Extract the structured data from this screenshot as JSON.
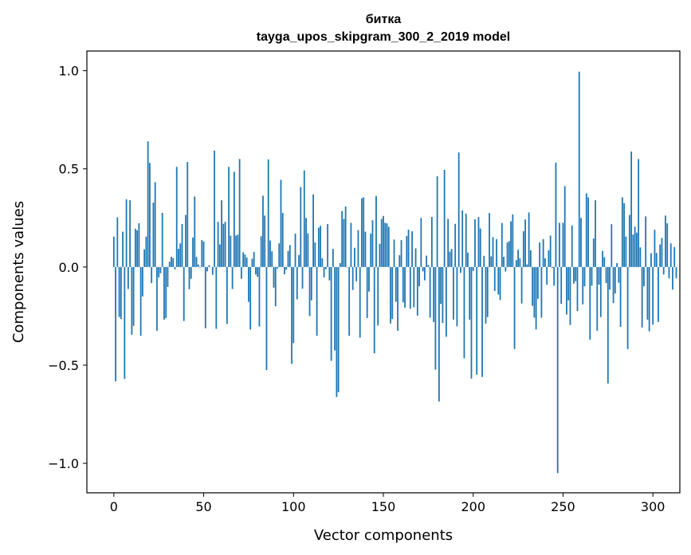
{
  "chart_data": {
    "type": "bar",
    "title": "битка",
    "subtitle": "tayga_upos_skipgram_300_2_2019 model",
    "xlabel": "Vector components",
    "ylabel": "Components values",
    "xlim": [
      -15,
      315
    ],
    "ylim": [
      -1.15,
      1.1
    ],
    "xticks": [
      0,
      50,
      100,
      150,
      200,
      250,
      300
    ],
    "xtick_labels": [
      "0",
      "50",
      "100",
      "150",
      "200",
      "250",
      "300"
    ],
    "yticks": [
      -1.0,
      -0.5,
      0.0,
      0.5,
      1.0
    ],
    "ytick_labels": [
      "−1.0",
      "−0.5",
      "0.0",
      "0.5",
      "1.0"
    ],
    "bar_color": "#1f77b4",
    "values": [
      0.155,
      -0.582,
      0.253,
      -0.255,
      -0.265,
      0.18,
      -0.57,
      0.345,
      -0.112,
      0.34,
      -0.345,
      -0.3,
      0.195,
      0.187,
      0.223,
      -0.35,
      -0.15,
      0.09,
      0.155,
      0.64,
      0.53,
      -0.082,
      0.328,
      0.432,
      -0.325,
      -0.053,
      -0.032,
      0.276,
      -0.268,
      -0.26,
      -0.102,
      0.027,
      0.052,
      0.045,
      -0.012,
      0.51,
      0.093,
      0.12,
      0.219,
      -0.275,
      0.265,
      0.535,
      -0.113,
      -0.06,
      0.15,
      0.359,
      0.051,
      0.013,
      -0.003,
      0.137,
      0.13,
      -0.312,
      -0.022,
      0.009,
      0.0,
      -0.04,
      0.593,
      -0.315,
      0.23,
      0.115,
      0.34,
      0.22,
      0.23,
      -0.29,
      0.51,
      0.16,
      -0.112,
      0.485,
      0.16,
      0.165,
      0.55,
      -0.06,
      0.075,
      0.064,
      0.048,
      -0.178,
      -0.318,
      0.042,
      0.076,
      -0.038,
      -0.05,
      -0.303,
      0.157,
      0.363,
      0.262,
      -0.525,
      0.548,
      0.135,
      0.08,
      -0.105,
      -0.2,
      -0.008,
      0.12,
      0.444,
      0.275,
      -0.037,
      -0.014,
      0.082,
      0.112,
      -0.493,
      -0.388,
      0.17,
      -0.165,
      0.061,
      0.407,
      -0.11,
      0.492,
      0.25,
      0.172,
      -0.25,
      -0.17,
      0.37,
      0.125,
      -0.35,
      0.2,
      0.21,
      0.045,
      -0.053,
      -0.011,
      0.219,
      -0.068,
      -0.478,
      0.092,
      -0.425,
      -0.662,
      -0.638,
      0.02,
      0.285,
      0.245,
      0.308,
      -0.002,
      -0.35,
      0.225,
      -0.117,
      0.098,
      -0.073,
      0.188,
      -0.36,
      0.35,
      0.355,
      0.18,
      -0.26,
      -0.125,
      0.17,
      0.238,
      -0.44,
      0.362,
      -0.298,
      0.118,
      0.245,
      0.26,
      0.225,
      0.222,
      0.205,
      -0.288,
      -0.265,
      0.14,
      -0.177,
      -0.325,
      0.06,
      0.137,
      -0.18,
      -0.207,
      0.158,
      0.19,
      -0.212,
      0.182,
      -0.205,
      0.095,
      -0.248,
      -0.098,
      0.25,
      -0.022,
      -0.068,
      0.058,
      0.01,
      -0.258,
      0.255,
      -0.28,
      -0.523,
      0.462,
      -0.685,
      -0.188,
      -0.285,
      0.495,
      -0.355,
      0.245,
      0.078,
      0.092,
      -0.268,
      0.22,
      -0.302,
      0.583,
      -0.03,
      0.288,
      -0.465,
      0.272,
      0.073,
      -0.268,
      -0.568,
      -0.02,
      0.243,
      -0.548,
      0.255,
      0.196,
      -0.56,
      0.057,
      -0.288,
      -0.255,
      0.275,
      0.054,
      0.152,
      -0.122,
      0.142,
      -0.14,
      -0.168,
      0.224,
      0.052,
      -0.023,
      0.125,
      0.132,
      0.233,
      0.268,
      -0.418,
      0.035,
      0.088,
      0.045,
      -0.186,
      0.182,
      0.242,
      0.013,
      0.278,
      0.085,
      -0.198,
      -0.258,
      -0.318,
      -0.162,
      0.125,
      -0.258,
      0.142,
      0.044,
      -0.09,
      0.085,
      0.16,
      -0.005,
      -0.095,
      0.532,
      -1.05,
      0.225,
      -0.188,
      0.225,
      0.412,
      -0.242,
      -0.17,
      -0.295,
      0.212,
      -0.085,
      -0.072,
      -0.225,
      0.995,
      0.25,
      -0.19,
      -0.098,
      0.375,
      0.355,
      -0.37,
      -0.095,
      0.145,
      0.34,
      -0.325,
      -0.09,
      -0.255,
      0.082,
      0.05,
      -0.082,
      -0.593,
      -0.115,
      0.218,
      -0.183,
      -0.135,
      0.02,
      -0.08,
      -0.305,
      0.355,
      0.325,
      0.155,
      -0.418,
      0.265,
      0.588,
      0.165,
      0.205,
      0.175,
      0.55,
      0.1,
      -0.308,
      -0.098,
      0.258,
      -0.268,
      -0.328,
      0.07,
      -0.293,
      0.19,
      0.072,
      -0.28,
      0.115,
      0.148,
      -0.038,
      0.262,
      0.222,
      -0.058,
      0.12,
      -0.115,
      0.102,
      -0.058
    ]
  }
}
